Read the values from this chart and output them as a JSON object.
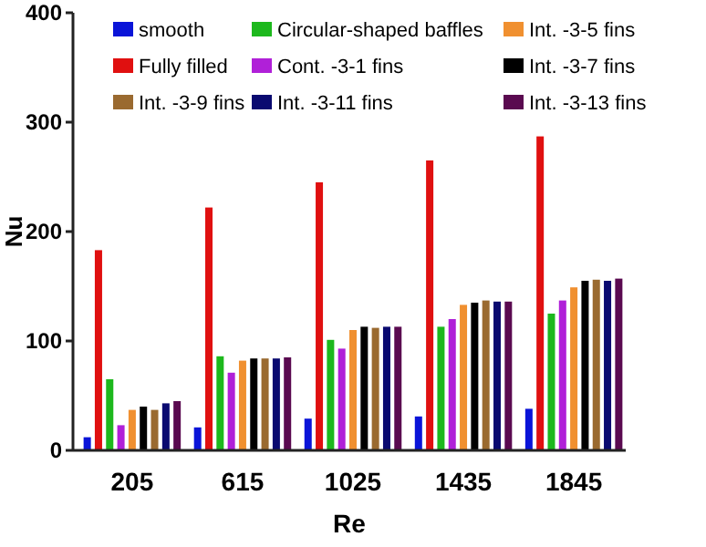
{
  "chart_data": {
    "type": "bar",
    "xlabel": "Re",
    "ylabel": "Nu",
    "categories": [
      "205",
      "615",
      "1025",
      "1435",
      "1845"
    ],
    "ylim": [
      0,
      400
    ],
    "yticks": [
      0,
      100,
      200,
      300,
      400
    ],
    "legend": "top",
    "series": [
      {
        "name": "smooth",
        "color": "#0a14d8",
        "values": [
          12,
          21,
          29,
          31,
          38
        ]
      },
      {
        "name": "Fully filled",
        "color": "#e01010",
        "values": [
          183,
          222,
          245,
          265,
          287
        ]
      },
      {
        "name": "Circular-shaped baffles",
        "color": "#1db81d",
        "values": [
          65,
          86,
          101,
          113,
          125
        ]
      },
      {
        "name": "Cont. -3-1 fins",
        "color": "#b020d8",
        "values": [
          23,
          71,
          93,
          120,
          137
        ]
      },
      {
        "name": "Int. -3-5 fins",
        "color": "#f09030",
        "values": [
          37,
          82,
          110,
          133,
          149
        ]
      },
      {
        "name": "Int. -3-7 fins",
        "color": "#000000",
        "values": [
          40,
          84,
          113,
          135,
          155
        ]
      },
      {
        "name": "Int. -3-9 fins",
        "color": "#9a6a30",
        "values": [
          37,
          84,
          112,
          137,
          156
        ]
      },
      {
        "name": "Int. -3-11 fins",
        "color": "#0a0a70",
        "values": [
          43,
          84,
          113,
          136,
          155
        ]
      },
      {
        "name": "Int. -3-13 fins",
        "color": "#5a0a50",
        "values": [
          45,
          85,
          113,
          136,
          157
        ]
      }
    ]
  }
}
